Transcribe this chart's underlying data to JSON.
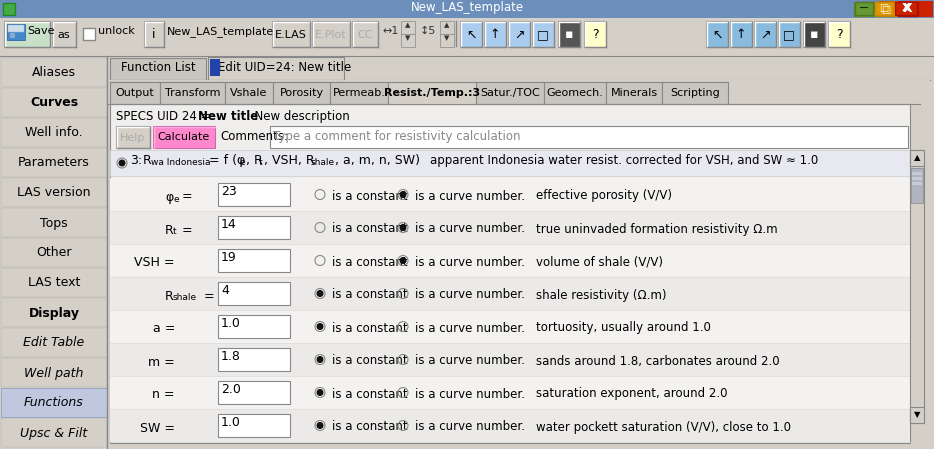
{
  "title": "New_LAS_template",
  "bg_main": "#c8c8d0",
  "left_menu": [
    "Aliases",
    "Curves",
    "Well info.",
    "Parameters",
    "LAS version",
    "Tops",
    "Other",
    "LAS text",
    "Display",
    "Edit Table",
    "Well path",
    "Functions",
    "Upsc & Filt"
  ],
  "left_menu_style": [
    "normal",
    "bold",
    "normal",
    "normal",
    "normal",
    "normal",
    "normal",
    "normal",
    "bold",
    "italic",
    "italic",
    "italic",
    "italic"
  ],
  "left_menu_selected": "Functions",
  "tabs1": [
    "Function List",
    "Edit UID=24: New title"
  ],
  "tabs2": [
    "Output",
    "Transform",
    "Vshale",
    "Porosity",
    "Permeab.",
    "Resist./Temp.:3",
    "Satur./TOC",
    "Geomech.",
    "Minerals",
    "Scripting"
  ],
  "tabs2_widths": [
    50,
    65,
    48,
    57,
    58,
    88,
    68,
    62,
    56,
    66
  ],
  "active_tab2_idx": 5,
  "rows": [
    {
      "main": "φ",
      "sub": "e",
      "suf": " =",
      "value": "23",
      "r1": false,
      "r2": true,
      "desc": "effective porosity (V/V)"
    },
    {
      "main": "R",
      "sub": "t",
      "suf": " =",
      "value": "14",
      "r1": false,
      "r2": true,
      "desc": "true uninvaded formation resistivity Ω.m"
    },
    {
      "main": "VSH",
      "sub": "",
      "suf": " =",
      "value": "19",
      "r1": false,
      "r2": true,
      "desc": "volume of shale (V/V)"
    },
    {
      "main": "R",
      "sub": "shale",
      "suf": " =",
      "value": "4",
      "r1": true,
      "r2": false,
      "desc": "shale resistivity (Ω.m)"
    },
    {
      "main": "a",
      "sub": "",
      "suf": " =",
      "value": "1.0",
      "r1": true,
      "r2": false,
      "desc": "tortuosity, usually around 1.0"
    },
    {
      "main": "m",
      "sub": "",
      "suf": " =",
      "value": "1.8",
      "r1": true,
      "r2": false,
      "desc": "sands around 1.8, carbonates around 2.0"
    },
    {
      "main": "n",
      "sub": "",
      "suf": " =",
      "value": "2.0",
      "r1": true,
      "r2": false,
      "desc": "saturation exponent, around 2.0"
    },
    {
      "main": "SW",
      "sub": "",
      "suf": " =",
      "value": "1.0",
      "r1": true,
      "r2": false,
      "desc": "water pockett saturation (V/V), close to 1.0"
    }
  ]
}
